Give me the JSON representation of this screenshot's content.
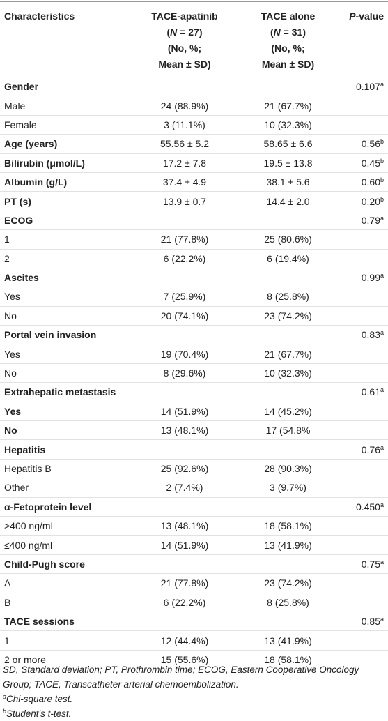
{
  "header": {
    "columns": [
      [
        [
          {
            "text": "Characteristics"
          }
        ]
      ],
      [
        [
          {
            "text": "TACE-apatinib"
          }
        ],
        [
          {
            "text": "("
          },
          {
            "text": "N",
            "italic": true
          },
          {
            "text": " = 27)"
          }
        ],
        [
          {
            "text": "(No, %;"
          }
        ],
        [
          {
            "text": "Mean ± SD)"
          }
        ]
      ],
      [
        [
          {
            "text": "TACE alone"
          }
        ],
        [
          {
            "text": "("
          },
          {
            "text": "N",
            "italic": true
          },
          {
            "text": " = 31)"
          }
        ],
        [
          {
            "text": "(No, %;"
          }
        ],
        [
          {
            "text": "Mean ± SD)"
          }
        ]
      ],
      [
        [
          {
            "text": "P",
            "italic": true
          },
          {
            "text": "-value"
          }
        ]
      ]
    ]
  },
  "table": {
    "rows": [
      {
        "label": "Gender",
        "bold": true,
        "p": "0.107",
        "p_note": "a"
      },
      {
        "label": "Male",
        "a": "24 (88.9%)",
        "b": "21 (67.7%)"
      },
      {
        "label": "Female",
        "a": "3 (11.1%)",
        "b": "10 (32.3%)"
      },
      {
        "label": "Age (years)",
        "bold": true,
        "a": "55.56 ± 5.2",
        "b": "58.65 ± 6.6",
        "p": "0.56",
        "p_note": "b"
      },
      {
        "label": "Bilirubin (μmol/L)",
        "bold": true,
        "a": "17.2 ± 7.8",
        "b": "19.5 ± 13.8",
        "p": "0.45",
        "p_note": "b"
      },
      {
        "label": "Albumin (g/L)",
        "bold": true,
        "a": "37.4 ± 4.9",
        "b": "38.1 ± 5.6",
        "p": "0.60",
        "p_note": "b"
      },
      {
        "label": "PT (s)",
        "bold": true,
        "a": "13.9 ± 0.7",
        "b": "14.4 ± 2.0",
        "p": "0.20",
        "p_note": "b"
      },
      {
        "label": "ECOG",
        "bold": true,
        "p": "0.79",
        "p_note": "a"
      },
      {
        "label": "1",
        "a": "21 (77.8%)",
        "b": "25 (80.6%)"
      },
      {
        "label": "2",
        "a": "6 (22.2%)",
        "b": "6 (19.4%)"
      },
      {
        "label": "Ascites",
        "bold": true,
        "p": "0.99",
        "p_note": "a"
      },
      {
        "label": "Yes",
        "a": "7 (25.9%)",
        "b": "8 (25.8%)"
      },
      {
        "label": "No",
        "a": "20 (74.1%)",
        "b": "23 (74.2%)"
      },
      {
        "label": "Portal vein invasion",
        "bold": true,
        "p": "0.83",
        "p_note": "a"
      },
      {
        "label": "Yes",
        "a": "19 (70.4%)",
        "b": "21 (67.7%)"
      },
      {
        "label": "No",
        "a": "8 (29.6%)",
        "b": "10 (32.3%)"
      },
      {
        "label": "Extrahepatic metastasis",
        "bold": true,
        "p": "0.61",
        "p_note": "a"
      },
      {
        "label": "Yes",
        "bold": true,
        "a": "14 (51.9%)",
        "b": "14 (45.2%)"
      },
      {
        "label": "No",
        "bold": true,
        "a": "13 (48.1%)",
        "b": "17 (54.8%"
      },
      {
        "label": "Hepatitis",
        "bold": true,
        "p": "0.76",
        "p_note": "a"
      },
      {
        "label": "Hepatitis B",
        "a": "25 (92.6%)",
        "b": "28 (90.3%)"
      },
      {
        "label": "Other",
        "a": "2 (7.4%)",
        "b": "3 (9.7%)"
      },
      {
        "label": "α-Fetoprotein level",
        "bold": true,
        "p": "0.450",
        "p_note": "a"
      },
      {
        "label": ">400 ng/mL",
        "a": "13 (48.1%)",
        "b": "18 (58.1%)"
      },
      {
        "label": "≤400 ng/ml",
        "a": "14 (51.9%)",
        "b": "13 (41.9%)"
      },
      {
        "label": "Child-Pugh score",
        "bold": true,
        "p": "0.75",
        "p_note": "a"
      },
      {
        "label": "A",
        "a": "21 (77.8%)",
        "b": "23 (74.2%)"
      },
      {
        "label": "B",
        "a": "6 (22.2%)",
        "b": "8 (25.8%)"
      },
      {
        "label": "TACE sessions",
        "bold": true,
        "p": "0.85",
        "p_note": "a"
      },
      {
        "label": "1",
        "a": "12 (44.4%)",
        "b": "13 (41.9%)"
      },
      {
        "label": "2 or more",
        "a": "15 (55.6%)",
        "b": "18 (58.1%)"
      }
    ]
  },
  "footnotes": [
    {
      "text": "SD, Standard deviation; PT, Prothrombin time; ECOG, Eastern Cooperative Oncology Group; TACE, Transcatheter arterial chemoembolization."
    },
    {
      "mark": "a",
      "text": "Chi-square test."
    },
    {
      "mark": "b",
      "text": "Student's t-test."
    }
  ]
}
